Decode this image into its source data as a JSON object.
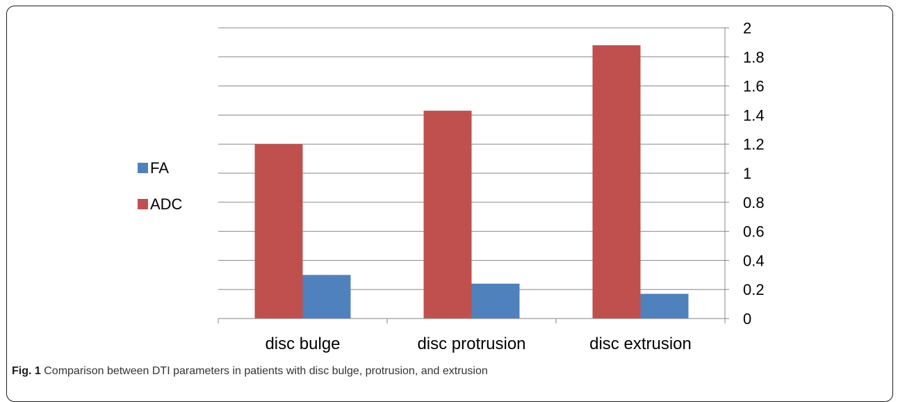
{
  "chart_data": {
    "type": "bar",
    "categories": [
      "disc bulge",
      "disc protrusion",
      "disc extrusion"
    ],
    "series": [
      {
        "name": "FA",
        "values": [
          0.3,
          0.24,
          0.17
        ],
        "color": "#4f81bd"
      },
      {
        "name": "ADC",
        "values": [
          1.2,
          1.43,
          1.88
        ],
        "color": "#c0504d"
      }
    ],
    "draw_order": [
      "ADC",
      "FA"
    ],
    "yticks": [
      "0",
      "0.2",
      "0.4",
      "0.6",
      "0.8",
      "1",
      "1.2",
      "1.4",
      "1.6",
      "1.8",
      "2"
    ],
    "ylim": [
      0,
      2
    ],
    "y_axis_side": "right",
    "grid": true,
    "legend_position": "left",
    "title": "",
    "xlabel": "",
    "ylabel": ""
  },
  "caption": {
    "label": "Fig. 1",
    "text": "Comparison between DTI parameters in patients with disc bulge, protrusion, and extrusion"
  }
}
